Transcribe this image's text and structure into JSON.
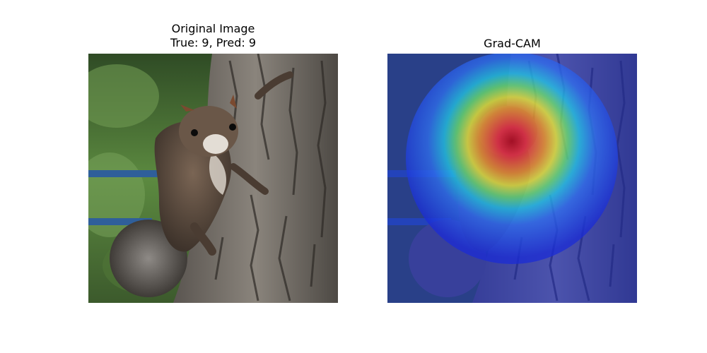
{
  "figure": {
    "left_title_line1": "Original Image",
    "left_title_line2": "True: 9, Pred: 9",
    "right_title": "Grad-CAM"
  },
  "images": {
    "original": {
      "subject": "squirrel-on-tree-trunk"
    },
    "gradcam": {
      "subject": "squirrel-on-tree-trunk",
      "overlay": "jet-heatmap",
      "hotspot": "squirrel-head"
    }
  },
  "colors": {
    "bark": "#6e6a65",
    "bark_dark": "#3f3b37",
    "foliage": "#4f7a3a",
    "rail": "#2f5f9a",
    "squirrel_fur": "#5a4a3e",
    "squirrel_belly": "#d8d1c8",
    "cam_cold": "#1a2bd6",
    "cam_hot": "#e31a1a"
  }
}
